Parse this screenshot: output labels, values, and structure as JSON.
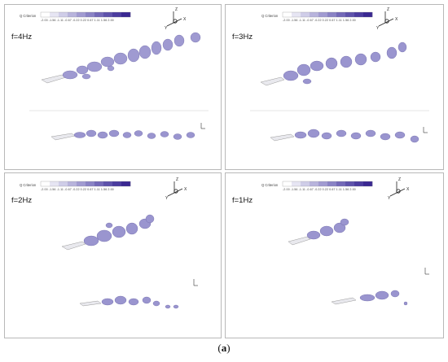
{
  "legend": {
    "title": "Q Criterion",
    "ticks": "-2.00 -1.56 -1.11 -0.67 -0.22  0.22  0.67  1.11  1.56  2.00",
    "colors": [
      "#ffffff",
      "#e6e5f3",
      "#cfcde8",
      "#b8b4dc",
      "#a19bd1",
      "#8a83c5",
      "#7369b8",
      "#5e52ab",
      "#4b3c9f",
      "#3a2892"
    ]
  },
  "axes": {
    "z": "Z",
    "x": "X",
    "y": "Y"
  },
  "panels": [
    {
      "id": "4hz",
      "label": "f=4Hz"
    },
    {
      "id": "3hz",
      "label": "f=3Hz"
    },
    {
      "id": "2hz",
      "label": "f=2Hz"
    },
    {
      "id": "1hz",
      "label": "f=1Hz"
    }
  ],
  "caption": {
    "open": "(",
    "letter": "a",
    "close": ")"
  },
  "iso_color": "#9a95cf"
}
